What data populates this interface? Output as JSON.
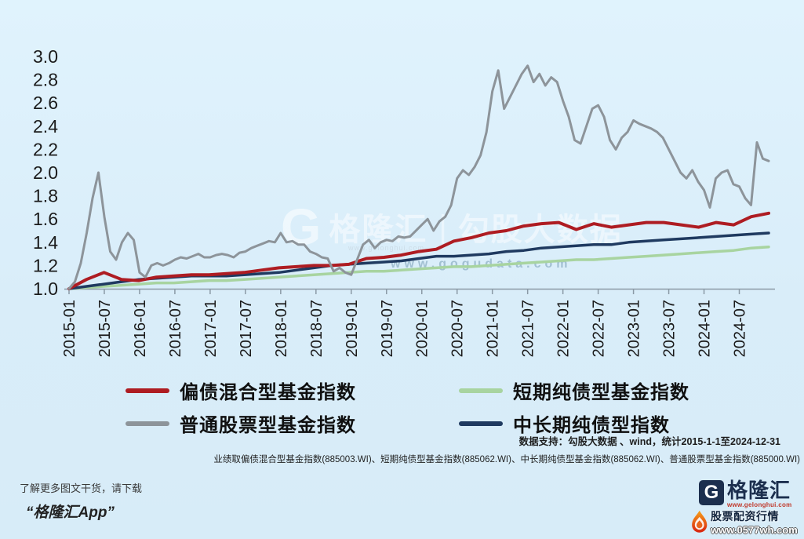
{
  "chart_data": {
    "type": "line",
    "title": "",
    "xlabel": "",
    "ylabel": "",
    "ylim": [
      1.0,
      3.0
    ],
    "grid": false,
    "legend_position": "bottom",
    "x_range": [
      "2015-01",
      "2024-12"
    ],
    "y_ticks": [
      "3.0",
      "2.8",
      "2.6",
      "2.4",
      "2.2",
      "2.0",
      "1.8",
      "1.6",
      "1.4",
      "1.2",
      "1.0"
    ],
    "x_ticks": [
      "2015-01",
      "2015-07",
      "2016-01",
      "2016-07",
      "2017-01",
      "2017-07",
      "2018-01",
      "2018-07",
      "2019-01",
      "2019-07",
      "2020-01",
      "2020-07",
      "2021-01",
      "2021-07",
      "2022-01",
      "2022-07",
      "2023-01",
      "2023-07",
      "2024-01",
      "2024-07"
    ],
    "series": [
      {
        "name": "偏债混合型基金指数",
        "color": "#ae1c22",
        "sampling": "quarterly",
        "values": [
          1.0,
          1.08,
          1.14,
          1.08,
          1.07,
          1.1,
          1.11,
          1.12,
          1.12,
          1.13,
          1.14,
          1.16,
          1.18,
          1.19,
          1.2,
          1.2,
          1.21,
          1.26,
          1.27,
          1.29,
          1.32,
          1.34,
          1.41,
          1.44,
          1.48,
          1.5,
          1.54,
          1.56,
          1.57,
          1.51,
          1.56,
          1.53,
          1.55,
          1.57,
          1.57,
          1.55,
          1.53,
          1.57,
          1.55,
          1.62,
          1.65
        ]
      },
      {
        "name": "短期纯债型基金指数",
        "color": "#a8d4a0",
        "sampling": "quarterly",
        "values": [
          1.0,
          1.01,
          1.02,
          1.03,
          1.04,
          1.05,
          1.05,
          1.06,
          1.07,
          1.07,
          1.08,
          1.09,
          1.1,
          1.11,
          1.12,
          1.13,
          1.14,
          1.15,
          1.15,
          1.16,
          1.17,
          1.18,
          1.19,
          1.19,
          1.2,
          1.21,
          1.22,
          1.23,
          1.24,
          1.25,
          1.25,
          1.26,
          1.27,
          1.28,
          1.29,
          1.3,
          1.31,
          1.32,
          1.33,
          1.35,
          1.36
        ]
      },
      {
        "name": "普通股票型基金指数",
        "color": "#8d949a",
        "sampling": "monthly",
        "values": [
          1.0,
          1.06,
          1.22,
          1.48,
          1.78,
          2.0,
          1.62,
          1.32,
          1.25,
          1.4,
          1.48,
          1.42,
          1.14,
          1.1,
          1.2,
          1.22,
          1.2,
          1.22,
          1.25,
          1.27,
          1.26,
          1.28,
          1.3,
          1.27,
          1.27,
          1.29,
          1.3,
          1.29,
          1.27,
          1.31,
          1.32,
          1.35,
          1.37,
          1.39,
          1.41,
          1.4,
          1.48,
          1.4,
          1.41,
          1.38,
          1.38,
          1.32,
          1.3,
          1.27,
          1.26,
          1.15,
          1.18,
          1.14,
          1.12,
          1.25,
          1.38,
          1.42,
          1.35,
          1.4,
          1.42,
          1.41,
          1.45,
          1.44,
          1.45,
          1.5,
          1.55,
          1.6,
          1.5,
          1.58,
          1.62,
          1.72,
          1.95,
          2.02,
          1.98,
          2.05,
          2.15,
          2.35,
          2.7,
          2.88,
          2.55,
          2.65,
          2.75,
          2.85,
          2.92,
          2.78,
          2.85,
          2.75,
          2.82,
          2.78,
          2.62,
          2.48,
          2.28,
          2.25,
          2.4,
          2.55,
          2.58,
          2.48,
          2.28,
          2.2,
          2.3,
          2.35,
          2.45,
          2.42,
          2.4,
          2.38,
          2.35,
          2.3,
          2.2,
          2.1,
          2.0,
          1.95,
          2.02,
          1.92,
          1.85,
          1.7,
          1.95,
          2.0,
          2.02,
          1.9,
          1.88,
          1.78,
          1.72,
          2.26,
          2.12,
          2.1
        ]
      },
      {
        "name": "中长期纯债型指数",
        "color": "#1f3a60",
        "sampling": "quarterly",
        "values": [
          1.0,
          1.02,
          1.04,
          1.06,
          1.08,
          1.09,
          1.1,
          1.11,
          1.11,
          1.11,
          1.12,
          1.13,
          1.14,
          1.16,
          1.18,
          1.2,
          1.21,
          1.22,
          1.23,
          1.24,
          1.26,
          1.28,
          1.28,
          1.29,
          1.3,
          1.32,
          1.33,
          1.35,
          1.36,
          1.37,
          1.38,
          1.38,
          1.4,
          1.41,
          1.42,
          1.43,
          1.44,
          1.45,
          1.46,
          1.47,
          1.48
        ]
      }
    ]
  },
  "watermark_center": {
    "logo_letter": "G",
    "brand": "格隆汇",
    "separator": "|",
    "product": "勾股大数据",
    "brand_url": "www.gelonghui.com",
    "url": "www.gogudata.com"
  },
  "footnotes": {
    "support": "数据支持：勾股大数据 、wind，统计2015-1-1至2024-12-31",
    "indices": "业绩取偏债混合型基金指数(885003.WI)、短期纯债型基金指数(885062.WI)、中长期纯债型基金指数(885062.WI)、普通股票型基金指数(885000.WI)"
  },
  "promo": {
    "line1": "了解更多图文干货，请下载",
    "line2": "“格隆汇App”"
  },
  "brand_footer": {
    "logo_letter": "G",
    "name": "格隆汇",
    "url": "www.gelonghui.com"
  },
  "overlay_watermark": {
    "icon": "flame-icon",
    "text": "股票配资行情",
    "url": "www.0577wh.com"
  },
  "colors": {
    "background": "#d9edf9",
    "axis_text": "#1b1b1b",
    "axis_line": "#8b9aa6",
    "series_red": "#ae1c22",
    "series_green": "#a8d4a0",
    "series_gray": "#8d949a",
    "series_navy": "#1f3a60",
    "brand_navy": "#1c2f4e",
    "brand_url_red": "#c0392b"
  }
}
